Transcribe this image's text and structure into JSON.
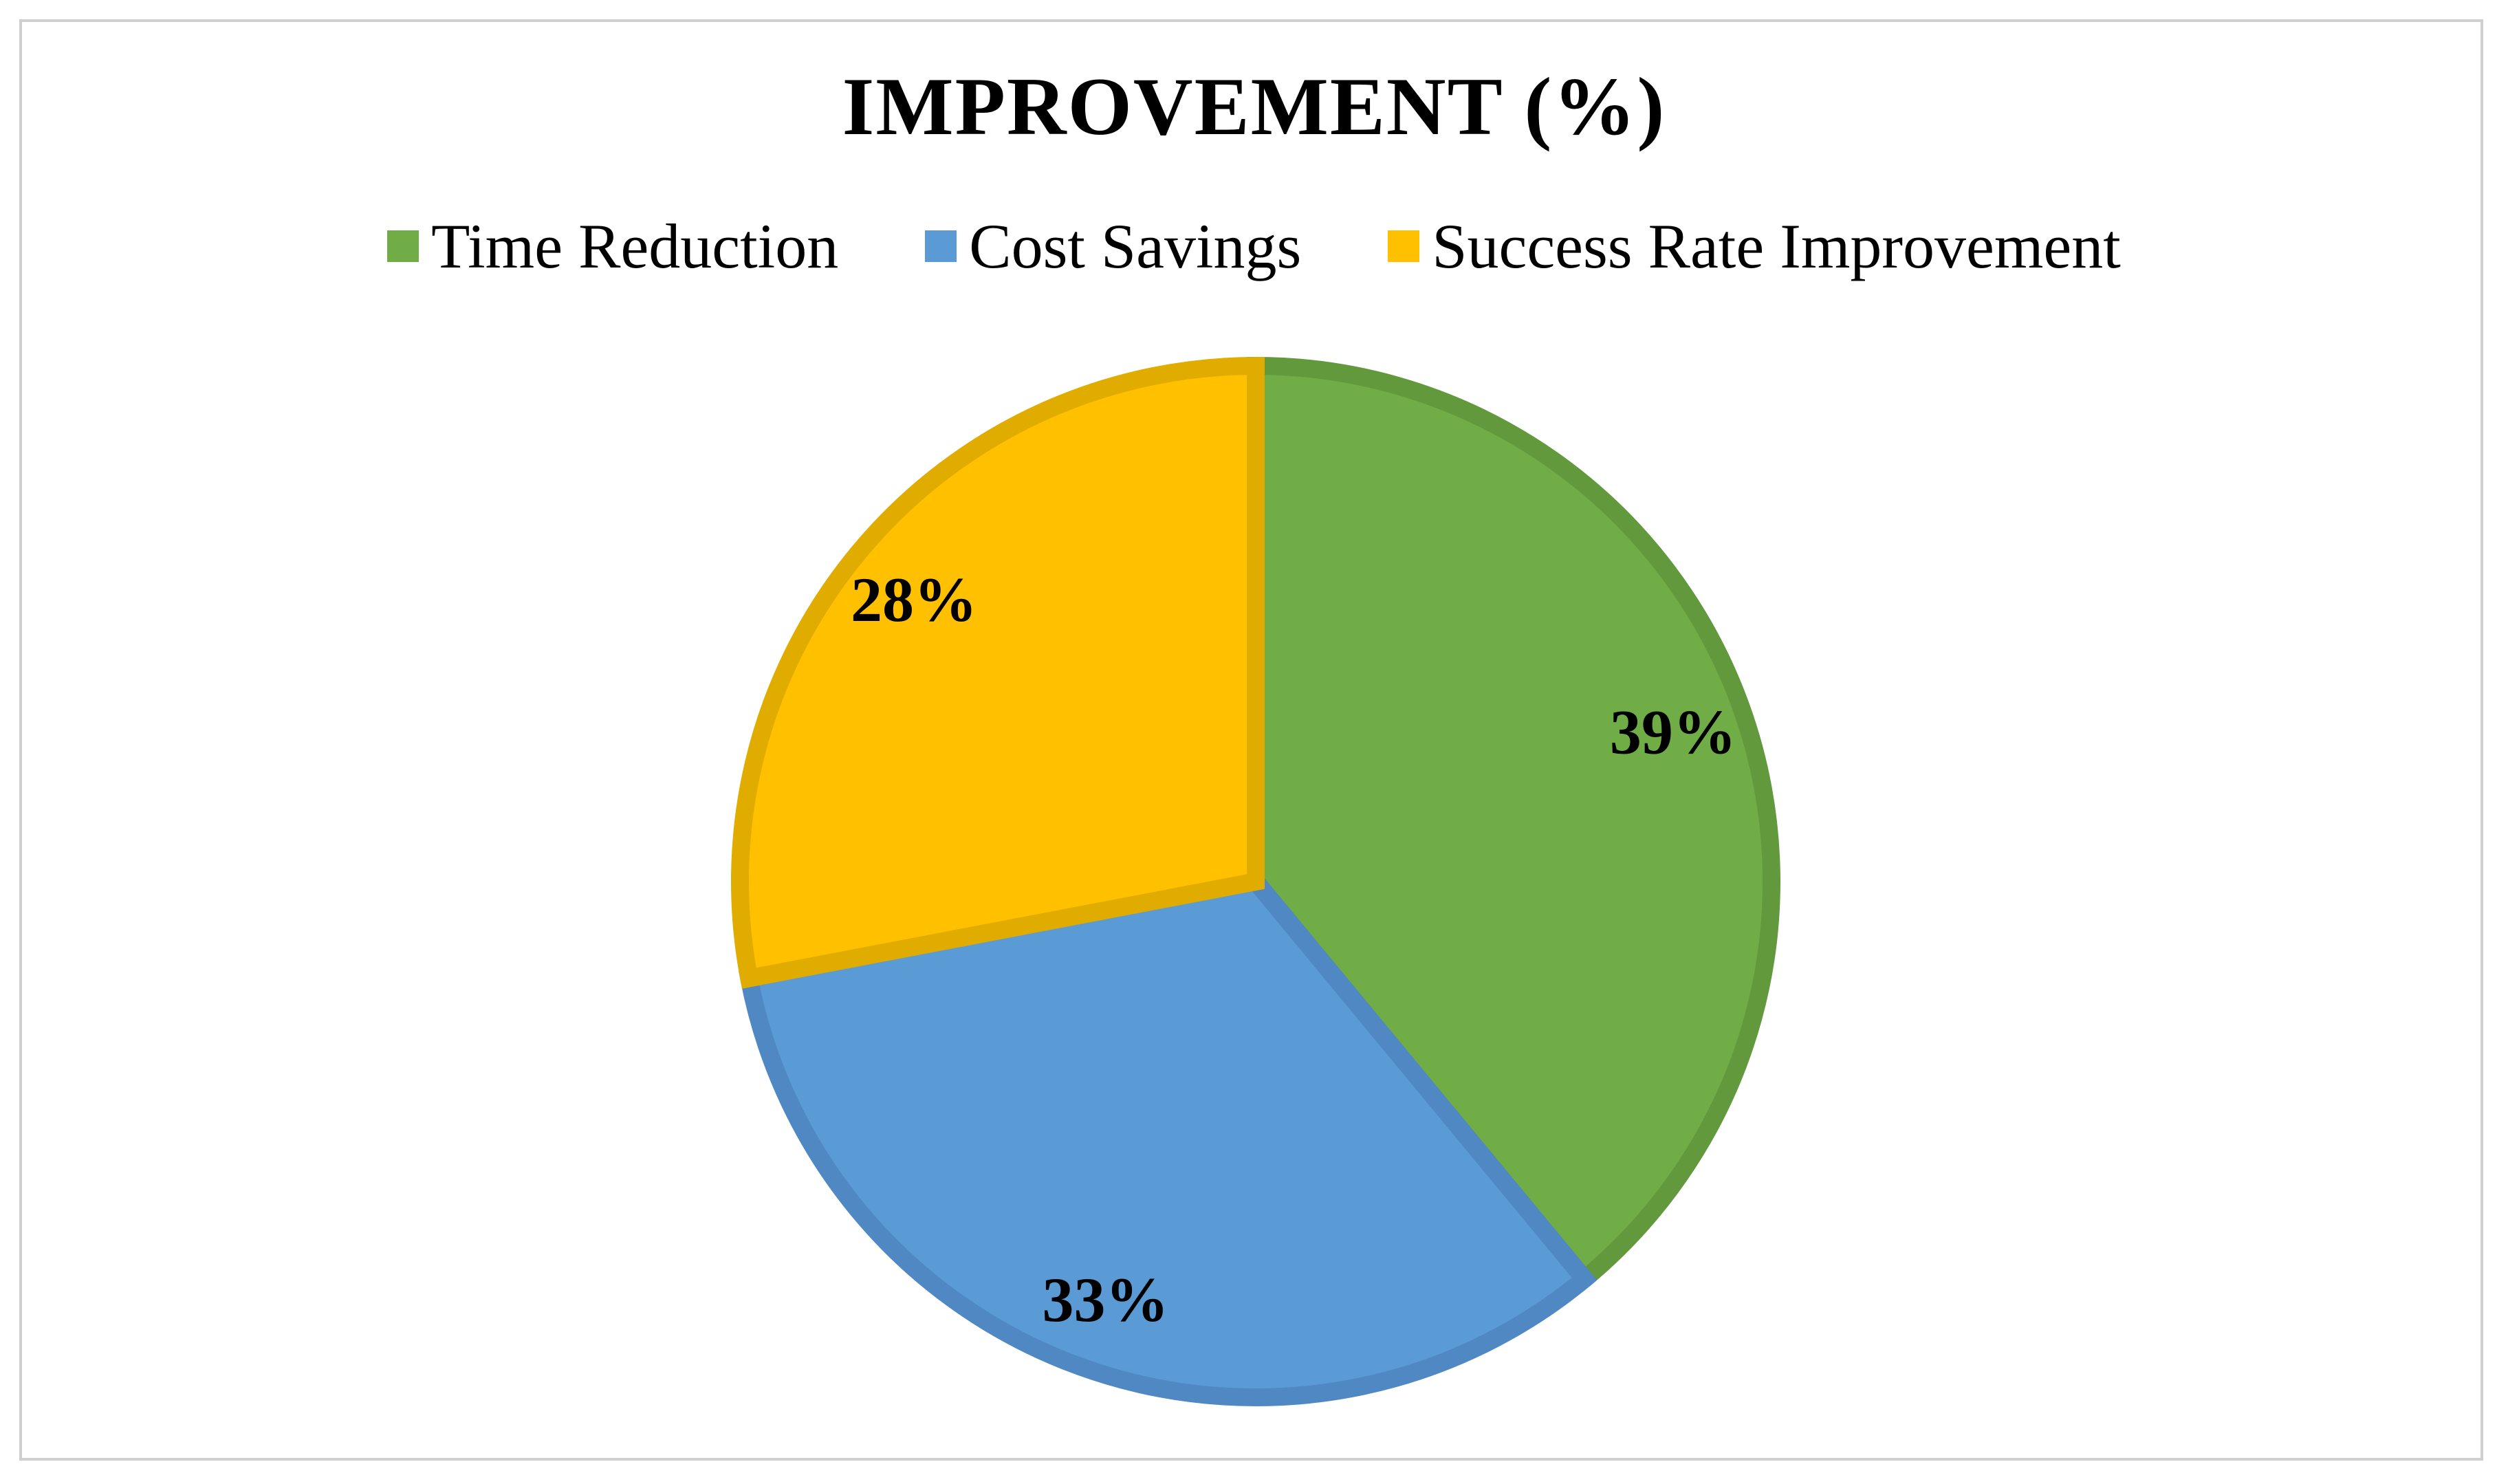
{
  "chart_data": {
    "type": "pie",
    "title": "IMPROVEMENT (%)",
    "categories": [
      "Time Reduction",
      "Cost Savings",
      "Success Rate Improvement"
    ],
    "values": [
      39,
      33,
      28
    ],
    "value_labels": [
      "39%",
      "33%",
      "28%"
    ],
    "colors": [
      "#70AD47",
      "#5B9BD5",
      "#FFC000"
    ],
    "border_colors": [
      "#62993C",
      "#4F88C2",
      "#E0AC00"
    ],
    "legend_position": "top",
    "start": "12 o'clock, clockwise"
  }
}
